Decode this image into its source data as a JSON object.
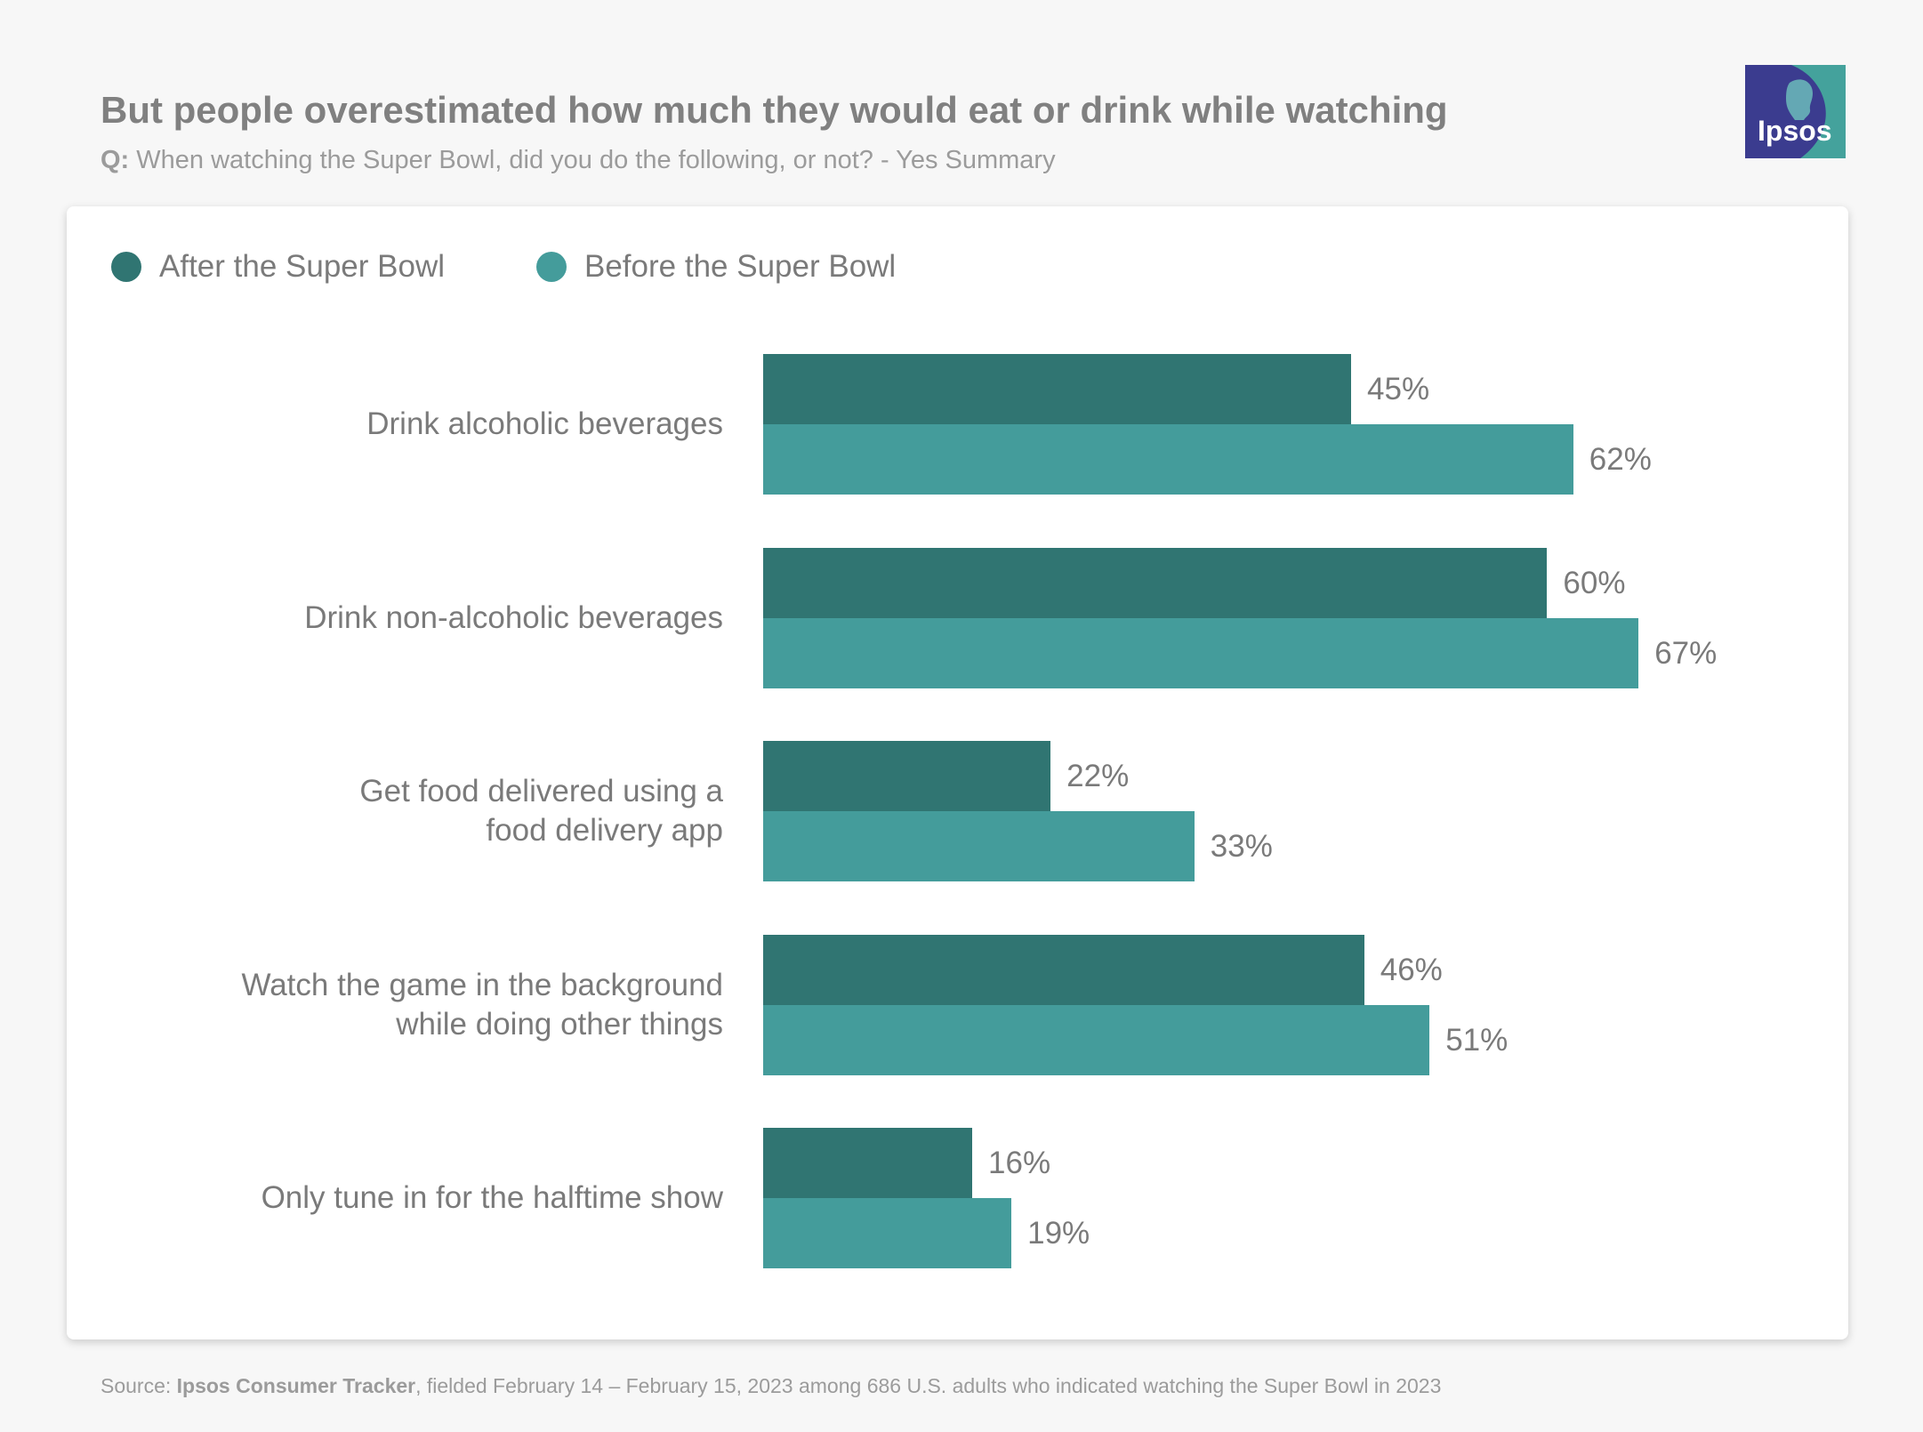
{
  "header": {
    "title": "But people overestimated how much they would eat or drink while watching",
    "subtitle_prefix": "Q:",
    "subtitle_text": " When watching the Super Bowl, did you do the following, or not? - Yes Summary"
  },
  "logo": {
    "text": "Ipsos",
    "colors": [
      "#3b3c8f",
      "#44a29c"
    ]
  },
  "footer": {
    "source_prefix": "Source: ",
    "source_bold": "Ipsos Consumer Tracker",
    "source_rest": ", fielded February 14 – February 15, 2023 among 686 U.S. adults who indicated watching the Super Bowl in 2023"
  },
  "chart_data": {
    "type": "bar",
    "orientation": "horizontal",
    "title": "But people overestimated how much they would eat or drink while watching",
    "categories": [
      "Drink alcoholic beverages",
      "Drink non-alcoholic beverages",
      "Get food delivered using a food delivery app",
      "Watch the game in the background while doing other things",
      "Only tune in for the halftime show"
    ],
    "category_lines": [
      [
        "Drink alcoholic beverages"
      ],
      [
        "Drink non-alcoholic beverages"
      ],
      [
        "Get food delivered using a",
        "food delivery app"
      ],
      [
        "Watch the game in the background",
        "while doing other things"
      ],
      [
        "Only tune in for the halftime show"
      ]
    ],
    "series": [
      {
        "name": "After the Super Bowl",
        "color": "#307572",
        "values": [
          45,
          60,
          22,
          46,
          16
        ],
        "labels": [
          "45%",
          "60%",
          "22%",
          "46%",
          "16%"
        ]
      },
      {
        "name": "Before the Super Bowl",
        "color": "#449c9b",
        "values": [
          62,
          67,
          33,
          51,
          19
        ],
        "labels": [
          "62%",
          "67%",
          "33%",
          "51%",
          "19%"
        ]
      }
    ],
    "unit": "%",
    "xlim": [
      0,
      100
    ],
    "grid": false,
    "axes_visible": false,
    "legend_position": "top-left"
  }
}
